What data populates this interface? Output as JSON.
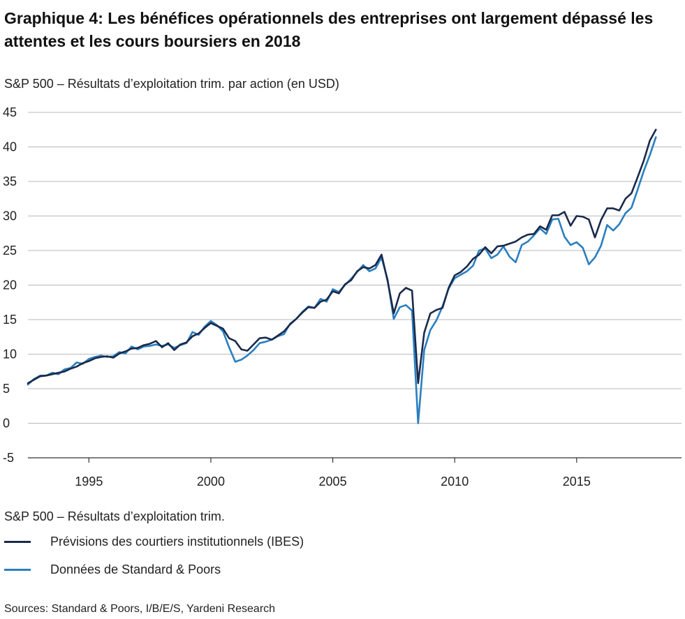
{
  "colors": {
    "ibes": "#1a2a4a",
    "sp": "#2a7fbf",
    "grid": "#b9b9b9"
  },
  "chart_data": {
    "type": "line",
    "title": "Graphique 4: Les bénéfices opérationnels des entreprises ont largement dépassé les attentes et les cours boursiers en 2018",
    "subtitle": "S&P 500 – Résultats d’exploitation trim. par action (en USD)",
    "xlabel": "",
    "ylabel": "",
    "xlim": [
      1992.5,
      2019.3
    ],
    "ylim": [
      -5,
      45
    ],
    "yticks": [
      45,
      40,
      35,
      30,
      25,
      20,
      15,
      10,
      5,
      0,
      -5
    ],
    "xticks": [
      1995,
      2000,
      2005,
      2010,
      2015
    ],
    "grid": true,
    "legend_title": "S&P 500 – Résultats d’exploitation trim.",
    "legend_position": "bottom",
    "series": [
      {
        "name": "Prévisions des courtiers institutionnels (IBES)",
        "color": "#1a2a4a",
        "points": [
          [
            1992.5,
            5.8
          ],
          [
            1992.75,
            6.3
          ],
          [
            1993,
            6.8
          ],
          [
            1993.25,
            6.9
          ],
          [
            1993.5,
            7.1
          ],
          [
            1993.75,
            7.3
          ],
          [
            1994,
            7.5
          ],
          [
            1994.25,
            7.9
          ],
          [
            1994.5,
            8.2
          ],
          [
            1994.75,
            8.7
          ],
          [
            1995,
            9.0
          ],
          [
            1995.25,
            9.4
          ],
          [
            1995.5,
            9.6
          ],
          [
            1995.75,
            9.7
          ],
          [
            1996,
            9.5
          ],
          [
            1996.25,
            10.1
          ],
          [
            1996.5,
            10.4
          ],
          [
            1996.75,
            10.8
          ],
          [
            1997,
            10.9
          ],
          [
            1997.25,
            11.3
          ],
          [
            1997.5,
            11.5
          ],
          [
            1997.75,
            11.9
          ],
          [
            1998,
            11.0
          ],
          [
            1998.25,
            11.6
          ],
          [
            1998.5,
            10.6
          ],
          [
            1998.75,
            11.4
          ],
          [
            1999,
            11.7
          ],
          [
            1999.25,
            12.6
          ],
          [
            1999.5,
            13.0
          ],
          [
            1999.75,
            13.8
          ],
          [
            2000,
            14.5
          ],
          [
            2000.25,
            14.1
          ],
          [
            2000.5,
            13.7
          ],
          [
            2000.75,
            12.3
          ],
          [
            2001,
            11.9
          ],
          [
            2001.25,
            10.7
          ],
          [
            2001.5,
            10.5
          ],
          [
            2001.75,
            11.4
          ],
          [
            2002,
            12.3
          ],
          [
            2002.25,
            12.4
          ],
          [
            2002.5,
            12.1
          ],
          [
            2002.75,
            12.7
          ],
          [
            2003,
            13.3
          ],
          [
            2003.25,
            14.3
          ],
          [
            2003.5,
            15.1
          ],
          [
            2003.75,
            16.0
          ],
          [
            2004,
            16.8
          ],
          [
            2004.25,
            16.7
          ],
          [
            2004.5,
            17.6
          ],
          [
            2004.75,
            17.9
          ],
          [
            2005,
            19.1
          ],
          [
            2005.25,
            18.8
          ],
          [
            2005.5,
            20.1
          ],
          [
            2005.75,
            20.7
          ],
          [
            2006,
            22.0
          ],
          [
            2006.25,
            22.6
          ],
          [
            2006.5,
            22.4
          ],
          [
            2006.75,
            22.9
          ],
          [
            2007,
            24.4
          ],
          [
            2007.25,
            20.6
          ],
          [
            2007.5,
            15.9
          ],
          [
            2007.75,
            18.8
          ],
          [
            2008,
            19.6
          ],
          [
            2008.25,
            19.2
          ],
          [
            2008.5,
            5.8
          ],
          [
            2008.75,
            13.1
          ],
          [
            2009,
            15.9
          ],
          [
            2009.25,
            16.4
          ],
          [
            2009.5,
            16.7
          ],
          [
            2009.75,
            19.6
          ],
          [
            2010,
            21.4
          ],
          [
            2010.25,
            21.9
          ],
          [
            2010.5,
            22.7
          ],
          [
            2010.75,
            23.8
          ],
          [
            2011,
            24.4
          ],
          [
            2011.25,
            25.5
          ],
          [
            2011.5,
            24.6
          ],
          [
            2011.75,
            25.6
          ],
          [
            2012,
            25.7
          ],
          [
            2012.25,
            26.0
          ],
          [
            2012.5,
            26.3
          ],
          [
            2012.75,
            26.9
          ],
          [
            2013,
            27.3
          ],
          [
            2013.25,
            27.4
          ],
          [
            2013.5,
            28.5
          ],
          [
            2013.75,
            28.0
          ],
          [
            2014,
            30.1
          ],
          [
            2014.25,
            30.1
          ],
          [
            2014.5,
            30.6
          ],
          [
            2014.75,
            28.6
          ],
          [
            2015,
            30.0
          ],
          [
            2015.25,
            29.9
          ],
          [
            2015.5,
            29.5
          ],
          [
            2015.75,
            26.9
          ],
          [
            2016,
            29.4
          ],
          [
            2016.25,
            31.1
          ],
          [
            2016.5,
            31.1
          ],
          [
            2016.75,
            30.8
          ],
          [
            2017,
            32.5
          ],
          [
            2017.25,
            33.3
          ],
          [
            2017.5,
            35.6
          ],
          [
            2017.75,
            38.0
          ],
          [
            2018,
            40.9
          ],
          [
            2018.25,
            42.5
          ]
        ]
      },
      {
        "name": "Données de Standard & Poors",
        "color": "#2a7fbf",
        "points": [
          [
            1992.5,
            5.6
          ],
          [
            1992.75,
            6.4
          ],
          [
            1993,
            6.9
          ],
          [
            1993.25,
            6.9
          ],
          [
            1993.5,
            7.3
          ],
          [
            1993.75,
            7.1
          ],
          [
            1994,
            7.8
          ],
          [
            1994.25,
            8.0
          ],
          [
            1994.5,
            8.8
          ],
          [
            1994.75,
            8.6
          ],
          [
            1995,
            9.3
          ],
          [
            1995.25,
            9.6
          ],
          [
            1995.5,
            9.8
          ],
          [
            1995.75,
            9.6
          ],
          [
            1996,
            9.7
          ],
          [
            1996.25,
            10.3
          ],
          [
            1996.5,
            10.1
          ],
          [
            1996.75,
            11.1
          ],
          [
            1997,
            10.7
          ],
          [
            1997.25,
            11.1
          ],
          [
            1997.5,
            11.2
          ],
          [
            1997.75,
            11.4
          ],
          [
            1998,
            11.2
          ],
          [
            1998.25,
            11.4
          ],
          [
            1998.5,
            10.9
          ],
          [
            1998.75,
            11.3
          ],
          [
            1999,
            11.6
          ],
          [
            1999.25,
            13.2
          ],
          [
            1999.5,
            12.8
          ],
          [
            1999.75,
            14.0
          ],
          [
            2000,
            14.8
          ],
          [
            2000.25,
            14.2
          ],
          [
            2000.5,
            13.3
          ],
          [
            2000.75,
            11.0
          ],
          [
            2001,
            8.9
          ],
          [
            2001.25,
            9.2
          ],
          [
            2001.5,
            9.8
          ],
          [
            2001.75,
            10.6
          ],
          [
            2002,
            11.6
          ],
          [
            2002.25,
            11.8
          ],
          [
            2002.5,
            12.1
          ],
          [
            2002.75,
            12.6
          ],
          [
            2003,
            12.9
          ],
          [
            2003.25,
            14.4
          ],
          [
            2003.5,
            15.1
          ],
          [
            2003.75,
            16.1
          ],
          [
            2004,
            16.9
          ],
          [
            2004.25,
            16.7
          ],
          [
            2004.5,
            18.0
          ],
          [
            2004.75,
            17.6
          ],
          [
            2005,
            19.4
          ],
          [
            2005.25,
            19.0
          ],
          [
            2005.5,
            20.0
          ],
          [
            2005.75,
            20.9
          ],
          [
            2006,
            21.9
          ],
          [
            2006.25,
            22.9
          ],
          [
            2006.5,
            22.0
          ],
          [
            2006.75,
            22.4
          ],
          [
            2007,
            24.0
          ],
          [
            2007.25,
            20.8
          ],
          [
            2007.5,
            15.1
          ],
          [
            2007.75,
            16.8
          ],
          [
            2008,
            17.1
          ],
          [
            2008.25,
            16.3
          ],
          [
            2008.5,
            0.0
          ],
          [
            2008.75,
            10.6
          ],
          [
            2009,
            13.5
          ],
          [
            2009.25,
            14.9
          ],
          [
            2009.5,
            16.9
          ],
          [
            2009.75,
            19.5
          ],
          [
            2010,
            21.0
          ],
          [
            2010.25,
            21.5
          ],
          [
            2010.5,
            22.0
          ],
          [
            2010.75,
            22.8
          ],
          [
            2011,
            25.0
          ],
          [
            2011.25,
            25.3
          ],
          [
            2011.5,
            23.9
          ],
          [
            2011.75,
            24.4
          ],
          [
            2012,
            25.6
          ],
          [
            2012.25,
            24.1
          ],
          [
            2012.5,
            23.3
          ],
          [
            2012.75,
            25.8
          ],
          [
            2013,
            26.3
          ],
          [
            2013.25,
            27.2
          ],
          [
            2013.5,
            28.2
          ],
          [
            2013.75,
            27.4
          ],
          [
            2014,
            29.5
          ],
          [
            2014.25,
            29.6
          ],
          [
            2014.5,
            27.0
          ],
          [
            2014.75,
            25.8
          ],
          [
            2015,
            26.2
          ],
          [
            2015.25,
            25.4
          ],
          [
            2015.5,
            23.0
          ],
          [
            2015.75,
            24.0
          ],
          [
            2016,
            25.7
          ],
          [
            2016.25,
            28.7
          ],
          [
            2016.5,
            27.9
          ],
          [
            2016.75,
            28.8
          ],
          [
            2017,
            30.4
          ],
          [
            2017.25,
            31.2
          ],
          [
            2017.5,
            33.8
          ],
          [
            2017.75,
            36.5
          ],
          [
            2018,
            38.8
          ],
          [
            2018.25,
            41.4
          ]
        ]
      }
    ]
  },
  "source": "Sources: Standard & Poors, I/B/E/S, Yardeni Research"
}
